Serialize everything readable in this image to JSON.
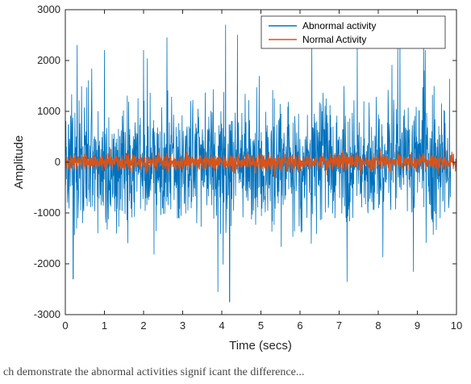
{
  "chart_data": {
    "type": "line",
    "title": "",
    "xlabel": "Time (secs)",
    "ylabel": "Amplitude",
    "xlim": [
      0,
      10
    ],
    "ylim": [
      -3000,
      3000
    ],
    "xticks": [
      0,
      1,
      2,
      3,
      4,
      5,
      6,
      7,
      8,
      9,
      10
    ],
    "yticks": [
      -3000,
      -2000,
      -1000,
      0,
      1000,
      2000,
      3000
    ],
    "legend_position": "top-right",
    "grid": false,
    "series": [
      {
        "name": "Abnormal activity",
        "color": "#0072BD",
        "x_range": [
          0,
          9.85
        ],
        "approx_envelope": [
          -2750,
          2700
        ],
        "typical_range": [
          -1500,
          1500
        ],
        "notable_points": [
          {
            "x": 0.3,
            "y": 2300
          },
          {
            "x": 1.0,
            "y": 2200
          },
          {
            "x": 2.0,
            "y": 2200
          },
          {
            "x": 2.6,
            "y": 2450
          },
          {
            "x": 4.1,
            "y": 2700
          },
          {
            "x": 4.4,
            "y": 2500
          },
          {
            "x": 6.3,
            "y": 2350
          },
          {
            "x": 8.5,
            "y": 2250
          },
          {
            "x": 9.2,
            "y": 2200
          },
          {
            "x": 0.2,
            "y": -2300
          },
          {
            "x": 3.9,
            "y": -2550
          },
          {
            "x": 4.2,
            "y": -2750
          },
          {
            "x": 7.2,
            "y": -2350
          },
          {
            "x": 8.9,
            "y": -2150
          }
        ]
      },
      {
        "name": "Normal Activity",
        "color": "#D95319",
        "x_range": [
          0,
          10
        ],
        "approx_envelope": [
          -450,
          450
        ],
        "typical_range": [
          -200,
          200
        ]
      }
    ]
  },
  "caption": "ch demonstrate  the abnormal activities  signif icant  the  difference..."
}
